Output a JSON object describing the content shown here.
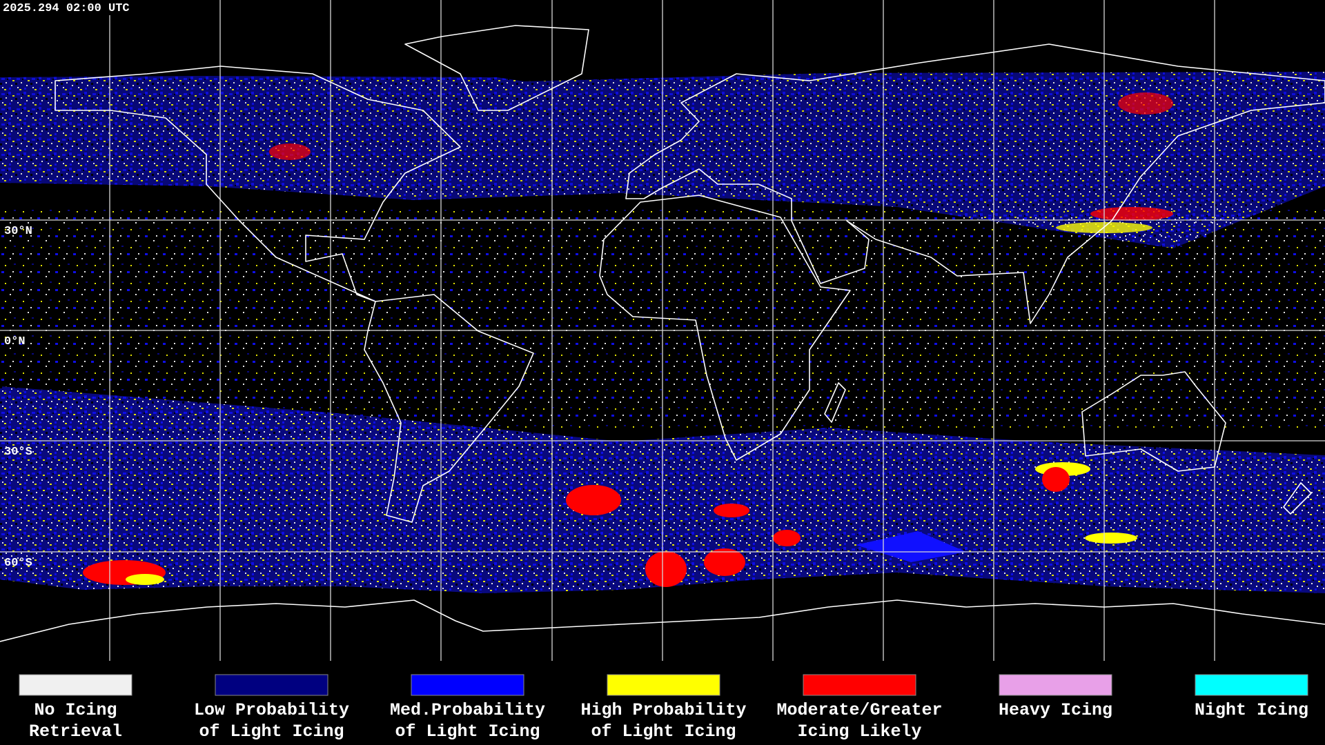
{
  "header": {
    "timestamp": "2025.294 02:00 UTC"
  },
  "map": {
    "lat_labels": [
      "30°N",
      "0°N",
      "30°S",
      "60°S"
    ]
  },
  "legend": [
    {
      "lines": [
        "No Icing",
        "Retrieval"
      ],
      "color": "#f0f0f0"
    },
    {
      "lines": [
        "Low Probability",
        "of Light Icing"
      ],
      "color": "#000080"
    },
    {
      "lines": [
        "Med.Probability",
        "of Light Icing"
      ],
      "color": "#0000ff"
    },
    {
      "lines": [
        "High Probability",
        "of Light Icing"
      ],
      "color": "#ffff00"
    },
    {
      "lines": [
        "Moderate/Greater",
        "Icing Likely"
      ],
      "color": "#ff0000"
    },
    {
      "lines": [
        "Heavy Icing"
      ],
      "color": "#e8a0e8"
    },
    {
      "lines": [
        "Night Icing"
      ],
      "color": "#00ffff"
    }
  ]
}
